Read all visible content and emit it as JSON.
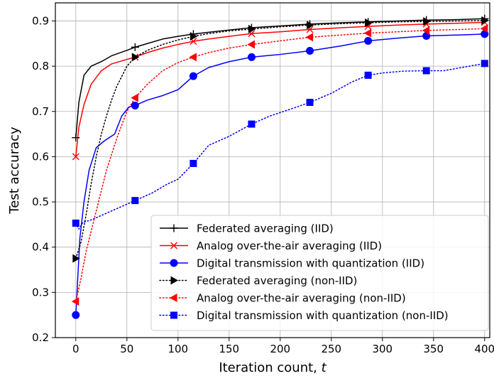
{
  "chart_data": {
    "type": "line",
    "xlabel": "Iteration count, ",
    "xlabel_var": "t",
    "ylabel": "Test accuracy",
    "xlim": [
      -20,
      405
    ],
    "ylim": [
      0.2,
      0.94
    ],
    "xticks": [
      0,
      50,
      100,
      150,
      200,
      250,
      300,
      350,
      400
    ],
    "yticks": [
      0.2,
      0.3,
      0.4,
      0.5,
      0.6,
      0.7,
      0.8,
      0.9
    ],
    "ytick_labels": [
      "0.2",
      "0.3",
      "0.4",
      "0.5",
      "0.6",
      "0.7",
      "0.8",
      "0.9"
    ],
    "grid": true,
    "legend_position": "lower-right",
    "series": [
      {
        "name": "Federated averaging (IID)",
        "color": "#000000",
        "style": "solid",
        "marker": "plus",
        "x": [
          0,
          3,
          8,
          15,
          25,
          35,
          50,
          58,
          70,
          85,
          100,
          115,
          130,
          150,
          172,
          200,
          229,
          260,
          286,
          315,
          343,
          375,
          400
        ],
        "y": [
          0.642,
          0.72,
          0.78,
          0.8,
          0.81,
          0.823,
          0.835,
          0.842,
          0.85,
          0.86,
          0.866,
          0.871,
          0.875,
          0.88,
          0.885,
          0.889,
          0.893,
          0.896,
          0.898,
          0.9,
          0.902,
          0.903,
          0.905
        ],
        "marker_x": [
          0,
          58,
          115,
          172,
          229,
          286,
          343,
          400
        ],
        "marker_y": [
          0.642,
          0.842,
          0.871,
          0.885,
          0.893,
          0.898,
          0.902,
          0.905
        ]
      },
      {
        "name": "Analog over-the-air averaging (IID)",
        "color": "#ff0000",
        "style": "solid",
        "marker": "x",
        "x": [
          0,
          3,
          8,
          15,
          25,
          35,
          50,
          58,
          70,
          85,
          100,
          115,
          130,
          150,
          172,
          200,
          229,
          260,
          286,
          315,
          343,
          375,
          400
        ],
        "y": [
          0.6,
          0.665,
          0.715,
          0.76,
          0.79,
          0.805,
          0.815,
          0.82,
          0.83,
          0.84,
          0.848,
          0.855,
          0.86,
          0.866,
          0.872,
          0.876,
          0.881,
          0.885,
          0.888,
          0.891,
          0.893,
          0.895,
          0.897
        ],
        "marker_x": [
          0,
          58,
          115,
          172,
          229,
          286,
          343,
          400
        ],
        "marker_y": [
          0.6,
          0.82,
          0.855,
          0.872,
          0.881,
          0.888,
          0.893,
          0.897
        ]
      },
      {
        "name": "Digital transmission with quantization (IID)",
        "color": "#0000ff",
        "style": "solid",
        "marker": "circle",
        "x": [
          0,
          4,
          8,
          13,
          20,
          28,
          38,
          45,
          52,
          58,
          70,
          85,
          100,
          115,
          130,
          150,
          172,
          200,
          229,
          260,
          286,
          315,
          343,
          375,
          400
        ],
        "y": [
          0.25,
          0.42,
          0.5,
          0.57,
          0.62,
          0.635,
          0.65,
          0.69,
          0.71,
          0.713,
          0.725,
          0.735,
          0.748,
          0.778,
          0.797,
          0.81,
          0.82,
          0.826,
          0.834,
          0.845,
          0.856,
          0.862,
          0.867,
          0.869,
          0.871
        ],
        "marker_x": [
          0,
          58,
          115,
          172,
          229,
          286,
          343,
          400
        ],
        "marker_y": [
          0.25,
          0.713,
          0.778,
          0.82,
          0.834,
          0.856,
          0.867,
          0.871
        ]
      },
      {
        "name": "Federated averaging (non-IID)",
        "color": "#000000",
        "style": "dotted",
        "marker": "triangle-right",
        "x": [
          0,
          5,
          10,
          15,
          20,
          25,
          30,
          35,
          40,
          50,
          58,
          70,
          85,
          100,
          115,
          130,
          150,
          172,
          200,
          229,
          260,
          286,
          315,
          343,
          375,
          400
        ],
        "y": [
          0.375,
          0.41,
          0.47,
          0.54,
          0.6,
          0.65,
          0.69,
          0.725,
          0.755,
          0.8,
          0.82,
          0.835,
          0.848,
          0.858,
          0.866,
          0.872,
          0.878,
          0.882,
          0.887,
          0.891,
          0.894,
          0.896,
          0.898,
          0.899,
          0.9,
          0.901
        ],
        "marker_x": [
          0,
          58,
          115,
          172,
          229,
          286,
          343,
          400
        ],
        "marker_y": [
          0.375,
          0.82,
          0.866,
          0.882,
          0.891,
          0.896,
          0.899,
          0.901
        ]
      },
      {
        "name": "Analog over-the-air averaging (non-IID)",
        "color": "#ff0000",
        "style": "dotted",
        "marker": "triangle-left",
        "x": [
          0,
          5,
          10,
          20,
          30,
          40,
          50,
          58,
          70,
          85,
          100,
          115,
          130,
          150,
          172,
          200,
          229,
          260,
          286,
          315,
          343,
          375,
          400
        ],
        "y": [
          0.28,
          0.33,
          0.39,
          0.48,
          0.57,
          0.64,
          0.7,
          0.73,
          0.76,
          0.79,
          0.808,
          0.82,
          0.83,
          0.84,
          0.848,
          0.856,
          0.864,
          0.869,
          0.873,
          0.876,
          0.879,
          0.881,
          0.883
        ],
        "marker_x": [
          0,
          58,
          115,
          172,
          229,
          286,
          343,
          400
        ],
        "marker_y": [
          0.28,
          0.73,
          0.82,
          0.848,
          0.864,
          0.873,
          0.879,
          0.883
        ]
      },
      {
        "name": "Digital transmission with quantization (non-IID)",
        "color": "#0000ff",
        "style": "dotted",
        "marker": "square",
        "x": [
          0,
          3,
          7,
          15,
          25,
          40,
          58,
          75,
          90,
          100,
          115,
          130,
          150,
          172,
          190,
          210,
          229,
          250,
          270,
          286,
          300,
          320,
          343,
          360,
          380,
          400
        ],
        "y": [
          0.453,
          0.44,
          0.455,
          0.46,
          0.47,
          0.485,
          0.503,
          0.52,
          0.54,
          0.55,
          0.585,
          0.625,
          0.645,
          0.672,
          0.69,
          0.705,
          0.72,
          0.74,
          0.765,
          0.78,
          0.785,
          0.789,
          0.79,
          0.79,
          0.798,
          0.806
        ],
        "marker_x": [
          0,
          58,
          115,
          172,
          229,
          286,
          343,
          400
        ],
        "marker_y": [
          0.453,
          0.503,
          0.585,
          0.672,
          0.72,
          0.78,
          0.79,
          0.806
        ]
      }
    ]
  }
}
